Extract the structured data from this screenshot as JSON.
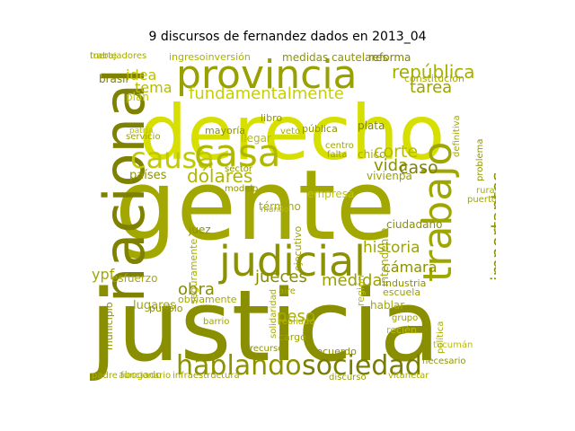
{
  "title": "9 discursos de fernandez dados en 2013_04",
  "words": [
    {
      "text": "gente",
      "color": "#a3a800"
    },
    {
      "text": "justicia",
      "color": "#8a8f00"
    },
    {
      "text": "derecho",
      "color": "#d7df00"
    },
    {
      "text": "provincia",
      "color": "#9aa000"
    },
    {
      "text": "nacional",
      "color": "#7e8200"
    },
    {
      "text": "causa",
      "color": "#c2c900"
    },
    {
      "text": "casa",
      "color": "#b1b800"
    },
    {
      "text": "judicial",
      "color": "#8c9100"
    },
    {
      "text": "trabajo",
      "color": "#a0a600"
    },
    {
      "text": "hablando",
      "color": "#8d9200"
    },
    {
      "text": "sociedad",
      "color": "#7a7e00"
    },
    {
      "text": "fundamentalmente",
      "color": "#c7cf00"
    },
    {
      "text": "república",
      "color": "#a7ae00"
    },
    {
      "text": "dólares",
      "color": "#b0b600"
    },
    {
      "text": "tarea",
      "color": "#9ca200"
    },
    {
      "text": "importantes",
      "color": "#8f9500"
    },
    {
      "text": "historia",
      "color": "#9ea400"
    },
    {
      "text": "cámara",
      "color": "#8b9000"
    },
    {
      "text": "corte",
      "color": "#b4bb00"
    },
    {
      "text": "vida",
      "color": "#8c9100"
    },
    {
      "text": "caso",
      "color": "#7d8100"
    },
    {
      "text": "jueces",
      "color": "#878c00"
    },
    {
      "text": "medida",
      "color": "#9ba100"
    },
    {
      "text": "obra",
      "color": "#878c00"
    },
    {
      "text": "peso",
      "color": "#a5ab00"
    },
    {
      "text": "idea",
      "color": "#bcc300"
    },
    {
      "text": "tema",
      "color": "#b5bc00"
    },
    {
      "text": "ypf",
      "color": "#a2a800"
    },
    {
      "text": "países",
      "color": "#8e9400"
    },
    {
      "text": "esfuerzo",
      "color": "#a6ac00"
    },
    {
      "text": "ingresoinversión",
      "color": "#aab100"
    },
    {
      "text": "medidas cautelares",
      "color": "#8e9400"
    },
    {
      "text": "reforma",
      "color": "#7f8300"
    },
    {
      "text": "constitución",
      "color": "#a7ad00"
    },
    {
      "text": "brasil",
      "color": "#7e8200"
    },
    {
      "text": "plan",
      "color": "#c1c800"
    },
    {
      "text": "mayoría",
      "color": "#8d9200"
    },
    {
      "text": "pública",
      "color": "#8f9500"
    },
    {
      "text": "plata",
      "color": "#7e8200"
    },
    {
      "text": "libro",
      "color": "#8e9400"
    },
    {
      "text": "llegar",
      "color": "#b6bd00"
    },
    {
      "text": "chico",
      "color": "#a7ad00"
    },
    {
      "text": "vivienpa",
      "color": "#9aa000"
    },
    {
      "text": "ciudadano",
      "color": "#8b9000"
    },
    {
      "text": "intendente",
      "color": "#a4aa00"
    },
    {
      "text": "empresa",
      "color": "#bfc600"
    },
    {
      "text": "término",
      "color": "#a4aa00"
    },
    {
      "text": "juez",
      "color": "#8d9200"
    },
    {
      "text": "seguramente",
      "color": "#a8ae00"
    },
    {
      "text": "ejecutivo",
      "color": "#9ba100"
    },
    {
      "text": "escuela",
      "color": "#9aa000"
    },
    {
      "text": "industria",
      "color": "#8d9200"
    },
    {
      "text": "hablar",
      "color": "#a3a900"
    },
    {
      "text": "región",
      "color": "#b5bc00"
    },
    {
      "text": "recién",
      "color": "#b9c000"
    },
    {
      "text": "lugares",
      "color": "#a0a600"
    },
    {
      "text": "obviamente",
      "color": "#a4aa00"
    },
    {
      "text": "pueblo",
      "color": "#8e9400"
    },
    {
      "text": "aire",
      "color": "#a1a700"
    },
    {
      "text": "cargo",
      "color": "#9ea400"
    },
    {
      "text": "realidad",
      "color": "#b3ba00"
    },
    {
      "text": "solidaridad",
      "color": "#a6ac00"
    },
    {
      "text": "barrio",
      "color": "#9da300"
    },
    {
      "text": "recurso",
      "color": "#8f9500"
    },
    {
      "text": "recuerdo",
      "color": "#8a8f00"
    },
    {
      "text": "abogado",
      "color": "#b3ba00"
    },
    {
      "text": "tucumán",
      "color": "#b8bf00"
    },
    {
      "text": "política",
      "color": "#a6ac00"
    },
    {
      "text": "problema",
      "color": "#8f9500"
    },
    {
      "text": "definitiva",
      "color": "#a4aa00"
    },
    {
      "text": "municipio",
      "color": "#8b9000"
    },
    {
      "text": "vitanetar",
      "color": "#a9af00"
    },
    {
      "text": "infraestructura",
      "color": "#9da300"
    },
    {
      "text": "padre funcionario",
      "color": "#a7ad00"
    },
    {
      "text": "grupo",
      "color": "#9ba100"
    },
    {
      "text": "discurso",
      "color": "#9aa000"
    },
    {
      "text": "necesario",
      "color": "#8f9500"
    },
    {
      "text": "mundo",
      "color": "#b3ba00"
    },
    {
      "text": "puerto",
      "color": "#a1a700"
    },
    {
      "text": "sector",
      "color": "#8e9400"
    },
    {
      "text": "falta",
      "color": "#9aa000"
    },
    {
      "text": "centro",
      "color": "#a0a600"
    },
    {
      "text": "veto",
      "color": "#a8ae00"
    },
    {
      "text": "servicio",
      "color": "#9da300"
    },
    {
      "text": "patria",
      "color": "#b6bd00"
    },
    {
      "text": "rural",
      "color": "#a9af00"
    },
    {
      "text": "modelo",
      "color": "#8f9500"
    },
    {
      "text": "fuerte",
      "color": "#b1b800"
    },
    {
      "text": "trabajadores",
      "color": "#a6ac00"
    }
  ]
}
